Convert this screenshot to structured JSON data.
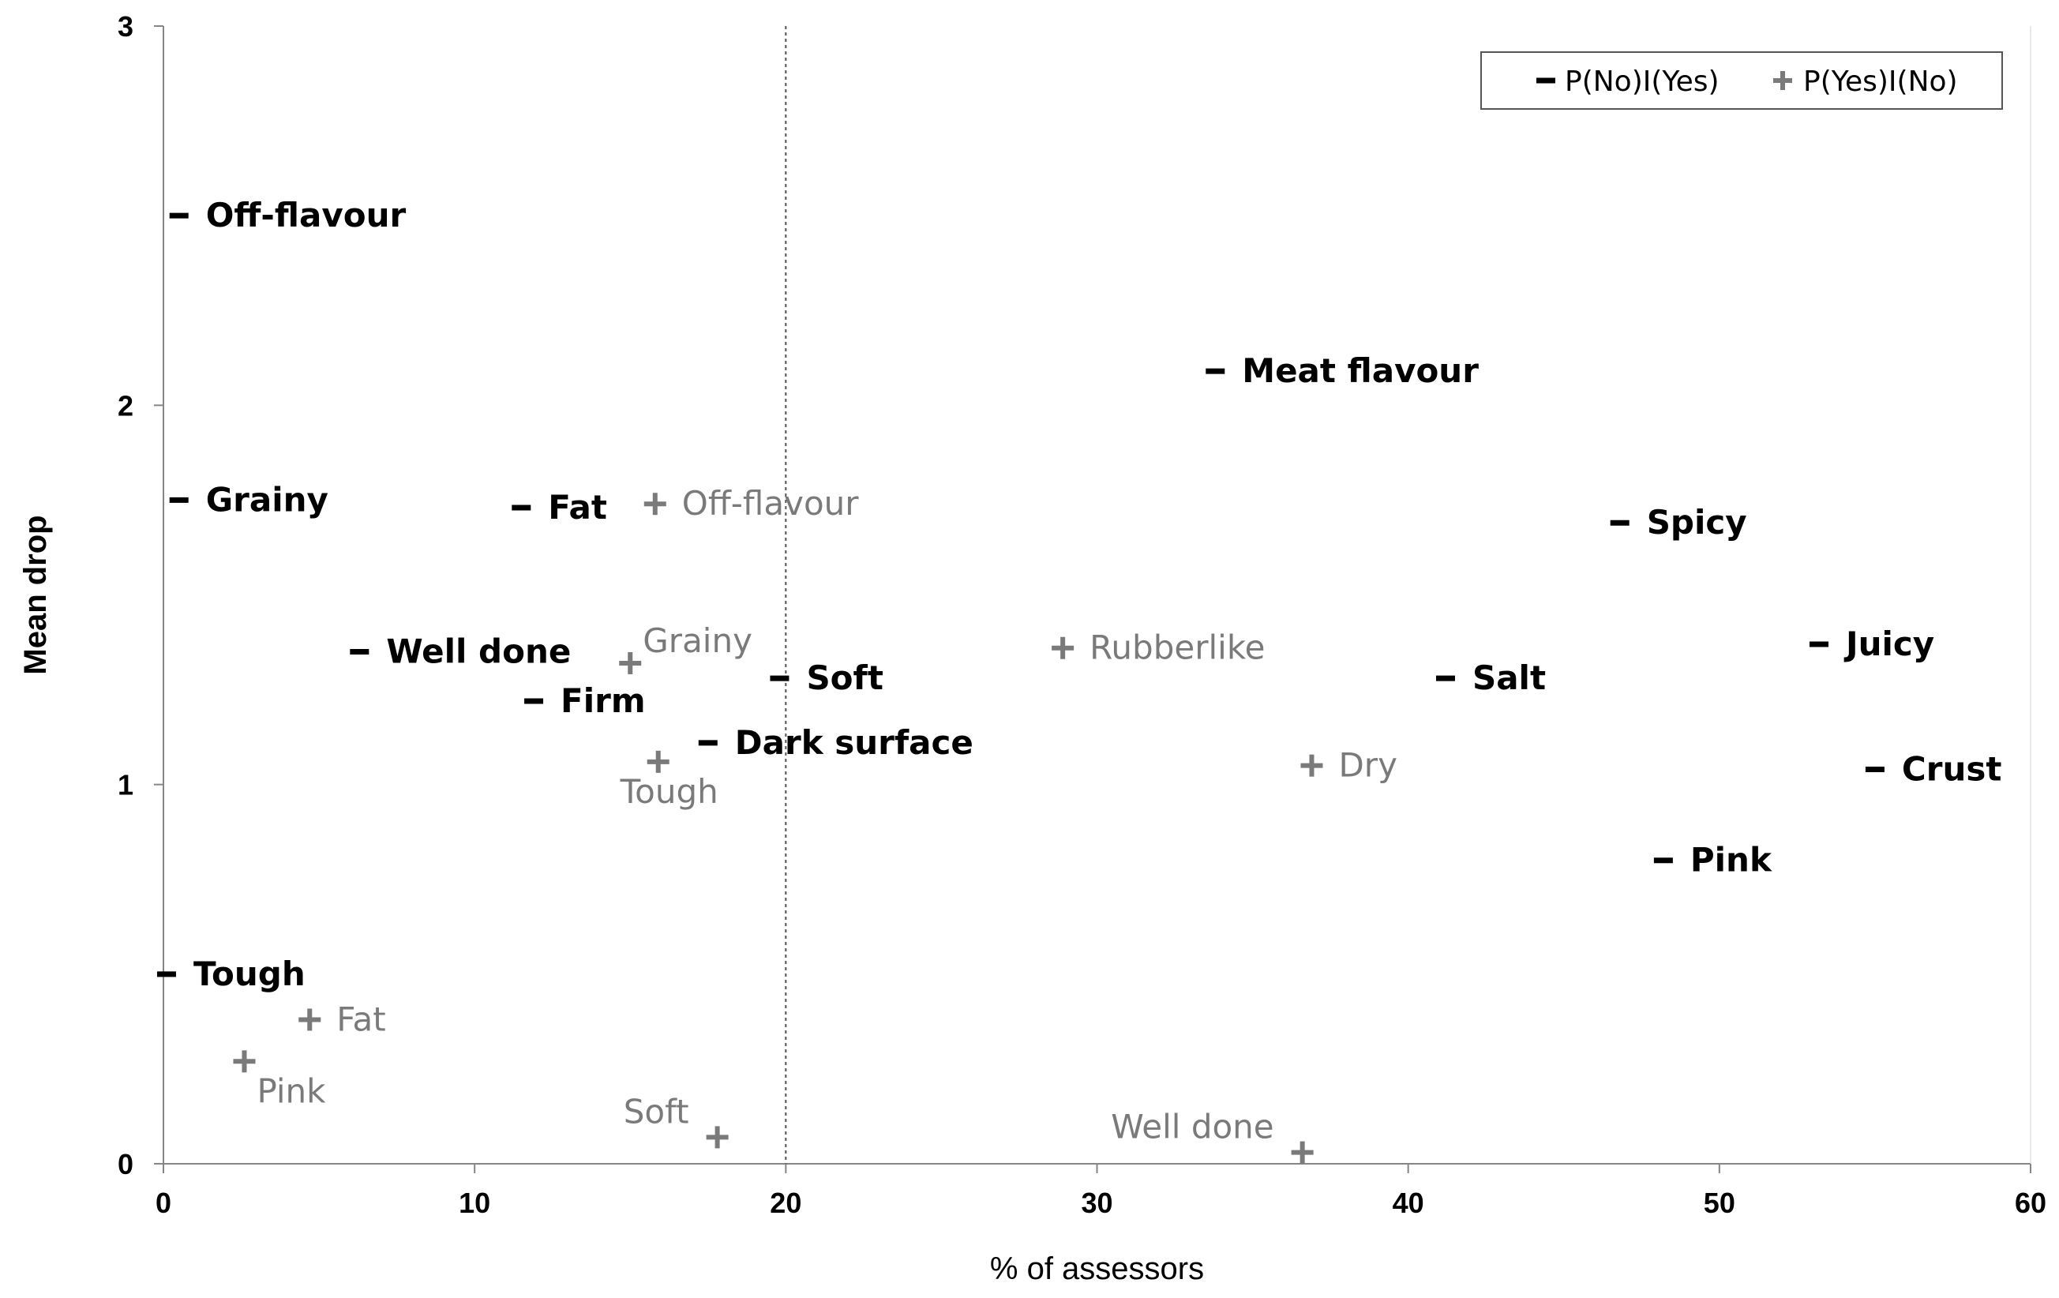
{
  "chart_data": {
    "type": "scatter",
    "xlabel": "% of assessors",
    "ylabel": "Mean drop",
    "xlim": [
      0,
      60
    ],
    "ylim": [
      0,
      3
    ],
    "x_ticks": [
      0,
      10,
      20,
      30,
      40,
      50,
      60
    ],
    "y_ticks": [
      0,
      1,
      2,
      3
    ],
    "reference_line_x": 20,
    "grid": false,
    "legend_position": "top-right",
    "series": [
      {
        "name": "P(No)I(Yes)",
        "marker": "dash",
        "color": "#000000",
        "points": [
          {
            "label": "Off-flavour",
            "x": 0.5,
            "y": 2.5,
            "label_side": "right"
          },
          {
            "label": "Grainy",
            "x": 0.5,
            "y": 1.75,
            "label_side": "right"
          },
          {
            "label": "Tough",
            "x": 0.1,
            "y": 0.5,
            "label_side": "right"
          },
          {
            "label": "Well done",
            "x": 6.3,
            "y": 1.35,
            "label_side": "right"
          },
          {
            "label": "Fat",
            "x": 11.5,
            "y": 1.73,
            "label_side": "right"
          },
          {
            "label": "Firm",
            "x": 11.9,
            "y": 1.22,
            "label_side": "right"
          },
          {
            "label": "Dark surface",
            "x": 17.5,
            "y": 1.11,
            "label_side": "right"
          },
          {
            "label": "Soft",
            "x": 19.8,
            "y": 1.28,
            "label_side": "right"
          },
          {
            "label": "Meat flavour",
            "x": 33.8,
            "y": 2.09,
            "label_side": "right"
          },
          {
            "label": "Salt",
            "x": 41.2,
            "y": 1.28,
            "label_side": "right"
          },
          {
            "label": "Spicy",
            "x": 46.8,
            "y": 1.69,
            "label_side": "right"
          },
          {
            "label": "Pink",
            "x": 48.2,
            "y": 0.8,
            "label_side": "right"
          },
          {
            "label": "Juicy",
            "x": 53.2,
            "y": 1.37,
            "label_side": "right"
          },
          {
            "label": "Crust",
            "x": 55.0,
            "y": 1.04,
            "label_side": "right"
          }
        ]
      },
      {
        "name": "P(Yes)I(No)",
        "marker": "plus",
        "color": "#7a7a7a",
        "points": [
          {
            "label": "Off-flavour",
            "x": 15.8,
            "y": 1.74,
            "label_side": "right"
          },
          {
            "label": "Grainy",
            "x": 15.0,
            "y": 1.32,
            "label_side": "above-right"
          },
          {
            "label": "Tough",
            "x": 15.9,
            "y": 1.06,
            "label_side": "below"
          },
          {
            "label": "Rubberlike",
            "x": 28.9,
            "y": 1.36,
            "label_side": "right"
          },
          {
            "label": "Dry",
            "x": 36.9,
            "y": 1.05,
            "label_side": "right"
          },
          {
            "label": "Fat",
            "x": 4.7,
            "y": 0.38,
            "label_side": "right"
          },
          {
            "label": "Pink",
            "x": 2.6,
            "y": 0.27,
            "label_side": "below-right"
          },
          {
            "label": "Soft",
            "x": 17.8,
            "y": 0.07,
            "label_side": "above-left"
          },
          {
            "label": "Well done",
            "x": 36.6,
            "y": 0.03,
            "label_side": "above-left"
          }
        ]
      }
    ]
  }
}
